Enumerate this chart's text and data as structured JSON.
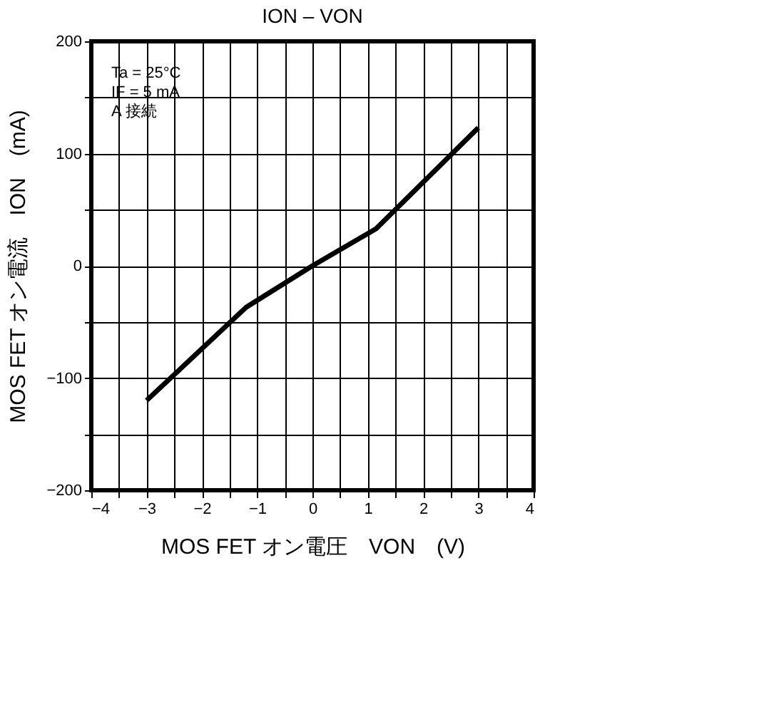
{
  "chart_data": {
    "type": "line",
    "title": "ION – VON",
    "xlabel": "MOS FET オン電圧　VON　(V)",
    "ylabel": "MOS FET オン電流　ION　(mA)",
    "annotations": [
      "Ta = 25°C",
      "IF = 5 mA",
      "A 接続"
    ],
    "x": [
      -3,
      -1.2,
      0,
      1.15,
      3
    ],
    "series": [
      {
        "color": "#000000",
        "values": [
          -120,
          -37,
          0,
          33,
          123
        ]
      }
    ],
    "xlim": [
      -4,
      4
    ],
    "xticks": [
      {
        "value": -4,
        "label": "−4"
      },
      {
        "value": -3.5,
        "label": null
      },
      {
        "value": -3,
        "label": "−3"
      },
      {
        "value": -2.5,
        "label": null
      },
      {
        "value": -2,
        "label": "−2"
      },
      {
        "value": -1.5,
        "label": null
      },
      {
        "value": -1,
        "label": "−1"
      },
      {
        "value": -0.5,
        "label": null
      },
      0,
      {
        "value": 0.5,
        "label": null
      },
      1,
      {
        "value": 1.5,
        "label": null
      },
      2,
      {
        "value": 2.5,
        "label": null
      },
      3,
      {
        "value": 3.5,
        "label": null
      },
      4
    ],
    "ylim": [
      -200,
      200
    ],
    "yticks": [
      {
        "value": -200,
        "label": "−200"
      },
      {
        "value": -150,
        "label": null
      },
      {
        "value": -100,
        "label": "−100"
      },
      {
        "value": -50,
        "label": null
      },
      0,
      {
        "value": 50,
        "label": null
      },
      100,
      {
        "value": 150,
        "label": null
      },
      200
    ],
    "grid": true,
    "marker": "none",
    "line_style": "solid"
  }
}
